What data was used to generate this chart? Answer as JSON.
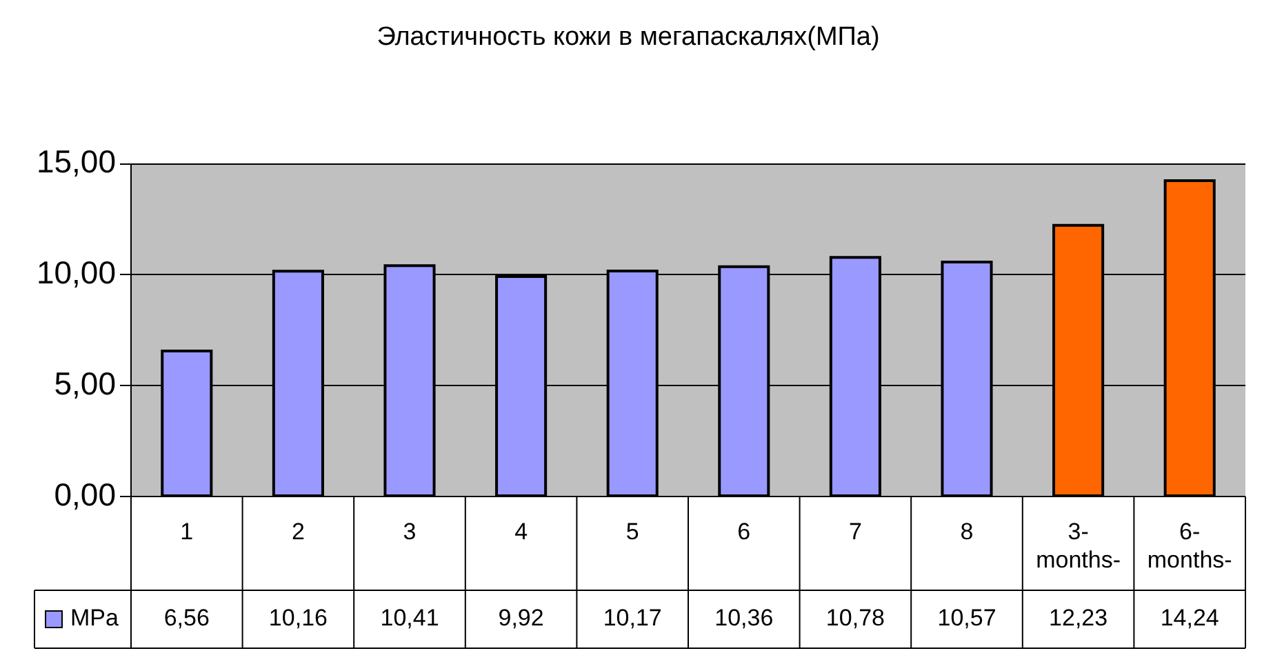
{
  "chart_data": {
    "type": "bar",
    "title": "Эластичность кожи в мегапаскалях(МПа)",
    "categories": [
      "1",
      "2",
      "3",
      "4",
      "5",
      "6",
      "7",
      "8",
      "3-months-",
      "6-months-"
    ],
    "series": [
      {
        "name": "MPa",
        "color": "#9999ff",
        "colors": [
          "#9999ff",
          "#9999ff",
          "#9999ff",
          "#9999ff",
          "#9999ff",
          "#9999ff",
          "#9999ff",
          "#9999ff",
          "#ff6600",
          "#ff6600"
        ],
        "values": [
          6.56,
          10.16,
          10.41,
          9.92,
          10.17,
          10.36,
          10.78,
          10.57,
          12.23,
          14.24
        ],
        "value_labels": [
          "6,56",
          "10,16",
          "10,41",
          "9,92",
          "10,17",
          "10,36",
          "10,78",
          "10,57",
          "12,23",
          "14,24"
        ]
      }
    ],
    "ylim": [
      0,
      15
    ],
    "yticks": [
      {
        "value": 0,
        "label": "0,00"
      },
      {
        "value": 5,
        "label": "5,00"
      },
      {
        "value": 10,
        "label": "10,00"
      },
      {
        "value": 15,
        "label": "15,00"
      }
    ],
    "grid": "y",
    "legend": "bottom"
  }
}
